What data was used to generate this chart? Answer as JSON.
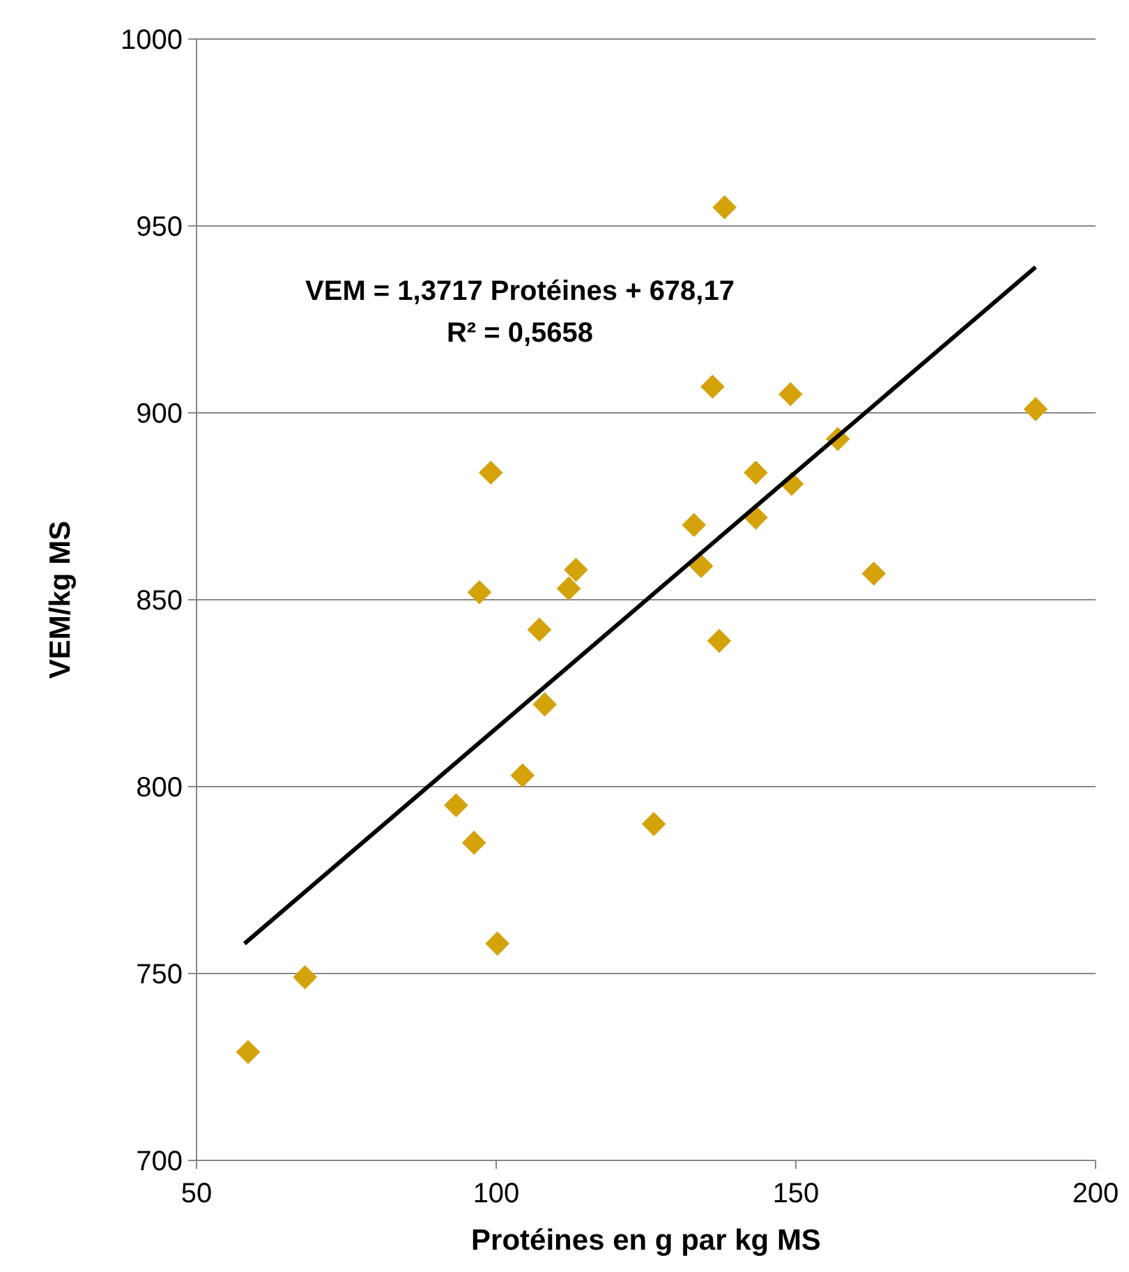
{
  "chart_data": {
    "type": "scatter",
    "xlabel": "Protéines en g par kg MS",
    "ylabel": "VEM/kg MS",
    "xlim": [
      50,
      200
    ],
    "xticks": [
      50,
      100,
      150,
      200
    ],
    "ylim": [
      700,
      1000
    ],
    "yticks": [
      700,
      750,
      800,
      850,
      900,
      950,
      1000
    ],
    "grid": "y",
    "annotations": [
      "VEM = 1,3717 Protéines + 678,17",
      "R² = 0,5658"
    ],
    "series": [
      {
        "color": "#d4a20a",
        "marker": "diamond",
        "x": [
          58.6,
          68.1,
          93.3,
          96.3,
          97.2,
          99.1,
          100.2,
          104.4,
          107.2,
          108.1,
          112.1,
          113.3,
          126.3,
          133,
          134.2,
          136.1,
          137.2,
          138.1,
          143.3,
          143.3,
          149.1,
          149.3,
          157,
          163,
          190
        ],
        "values": [
          729,
          749,
          795,
          785,
          852,
          884,
          758,
          803,
          842,
          822,
          853,
          858,
          790,
          870,
          859,
          907,
          839,
          955,
          884,
          872,
          905,
          881,
          893,
          857,
          901
        ]
      },
      {
        "type": "line",
        "color": "#000000",
        "marker": "none",
        "x": [
          58,
          190
        ],
        "values": [
          758,
          939
        ]
      }
    ]
  }
}
